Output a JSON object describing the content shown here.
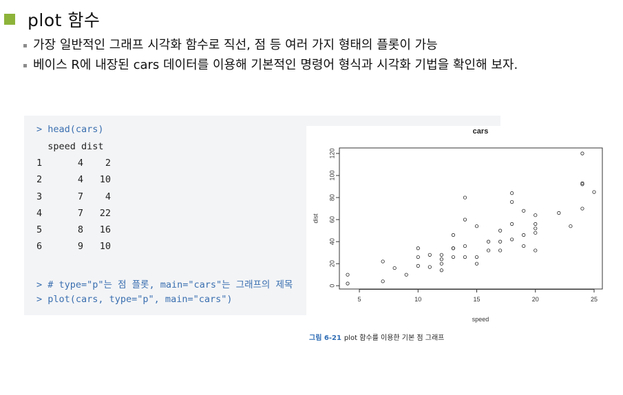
{
  "heading": "plot 함수",
  "bullets": [
    "가장 일반적인 그래프 시각화 함수로 직선, 점 등 여러 가지 형태의 플롯이 가능",
    "베이스 R에 내장된 cars 데이터를 이용해 기본적인 명령어 형식과 시각화 기법을 확인해 보자."
  ],
  "code": {
    "cmd_head": "> head(cars)",
    "header": "  speed dist",
    "rows": [
      {
        "idx": "1",
        "speed": "4",
        "dist": "2"
      },
      {
        "idx": "2",
        "speed": "4",
        "dist": "10"
      },
      {
        "idx": "3",
        "speed": "7",
        "dist": "4"
      },
      {
        "idx": "4",
        "speed": "7",
        "dist": "22"
      },
      {
        "idx": "5",
        "speed": "8",
        "dist": "16"
      },
      {
        "idx": "6",
        "speed": "9",
        "dist": "10"
      }
    ],
    "comment": "> # type=\"p\"는 점 플롯, main=\"cars\"는 그래프의 제목",
    "cmd_plot": "> plot(cars, type=\"p\", main=\"cars\")"
  },
  "chart_data": {
    "type": "scatter",
    "title": "cars",
    "xlabel": "speed",
    "ylabel": "dist",
    "xlim": [
      4,
      25
    ],
    "ylim": [
      2,
      120
    ],
    "xticks": [
      5,
      10,
      15,
      20,
      25
    ],
    "yticks": [
      0,
      20,
      40,
      60,
      80,
      100,
      120
    ],
    "grid": false,
    "points": [
      [
        4,
        2
      ],
      [
        4,
        10
      ],
      [
        7,
        4
      ],
      [
        7,
        22
      ],
      [
        8,
        16
      ],
      [
        9,
        10
      ],
      [
        10,
        18
      ],
      [
        10,
        26
      ],
      [
        10,
        34
      ],
      [
        11,
        17
      ],
      [
        11,
        28
      ],
      [
        12,
        14
      ],
      [
        12,
        20
      ],
      [
        12,
        24
      ],
      [
        12,
        28
      ],
      [
        13,
        26
      ],
      [
        13,
        34
      ],
      [
        13,
        34
      ],
      [
        13,
        46
      ],
      [
        14,
        26
      ],
      [
        14,
        36
      ],
      [
        14,
        60
      ],
      [
        14,
        80
      ],
      [
        15,
        20
      ],
      [
        15,
        26
      ],
      [
        15,
        54
      ],
      [
        16,
        32
      ],
      [
        16,
        40
      ],
      [
        17,
        32
      ],
      [
        17,
        40
      ],
      [
        17,
        50
      ],
      [
        18,
        42
      ],
      [
        18,
        56
      ],
      [
        18,
        76
      ],
      [
        18,
        84
      ],
      [
        19,
        36
      ],
      [
        19,
        46
      ],
      [
        19,
        68
      ],
      [
        20,
        32
      ],
      [
        20,
        48
      ],
      [
        20,
        52
      ],
      [
        20,
        56
      ],
      [
        20,
        64
      ],
      [
        22,
        66
      ],
      [
        23,
        54
      ],
      [
        24,
        70
      ],
      [
        24,
        92
      ],
      [
        24,
        93
      ],
      [
        24,
        120
      ],
      [
        25,
        85
      ]
    ]
  },
  "caption": {
    "figure_number": "그림 6-21",
    "text": "plot 함수를 이용한 기본 점 그래프"
  }
}
